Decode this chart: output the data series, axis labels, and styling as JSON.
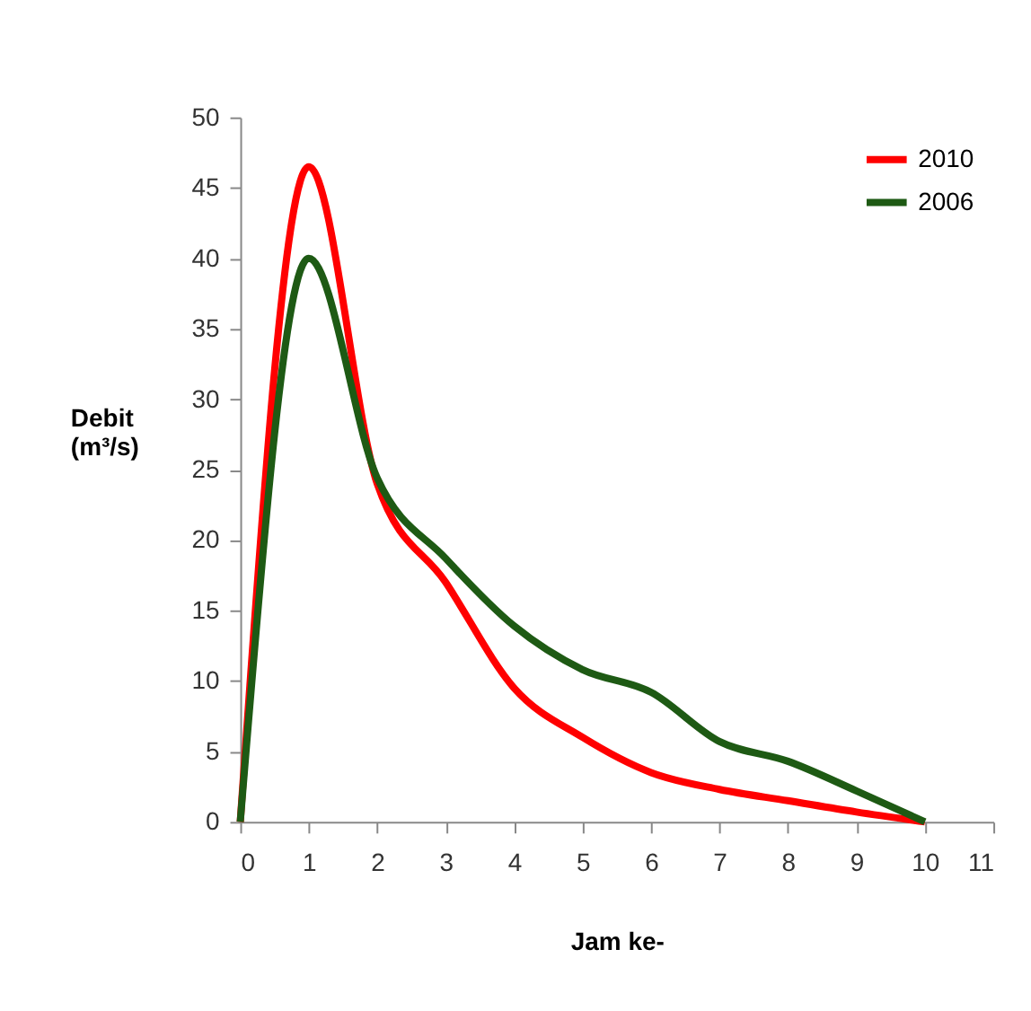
{
  "chart_data": {
    "type": "line",
    "xlabel": "Jam ke-",
    "ylabel": "Debit (m³/s)",
    "x": [
      0,
      1,
      2,
      3,
      4,
      5,
      6,
      7,
      8,
      9,
      10
    ],
    "series": [
      {
        "name": "2010",
        "color": "#ff0000",
        "values": [
          0,
          46.5,
          24,
          17,
          9.5,
          6,
          3.5,
          2.3,
          1.5,
          0.7,
          0
        ]
      },
      {
        "name": "2006",
        "color": "#1e5a14",
        "values": [
          0,
          40,
          24.4,
          18.7,
          13.9,
          10.8,
          9.2,
          5.7,
          4.3,
          2.2,
          0
        ]
      }
    ],
    "xlim": [
      0,
      11
    ],
    "xticks": [
      0,
      1,
      2,
      3,
      4,
      5,
      6,
      7,
      8,
      9,
      10,
      11
    ],
    "ylim": [
      0,
      50
    ],
    "yticks": [
      0,
      5,
      10,
      15,
      20,
      25,
      30,
      35,
      40,
      45,
      50
    ],
    "grid": false,
    "legend": "top right",
    "marker": "none",
    "line_style": "solid"
  }
}
